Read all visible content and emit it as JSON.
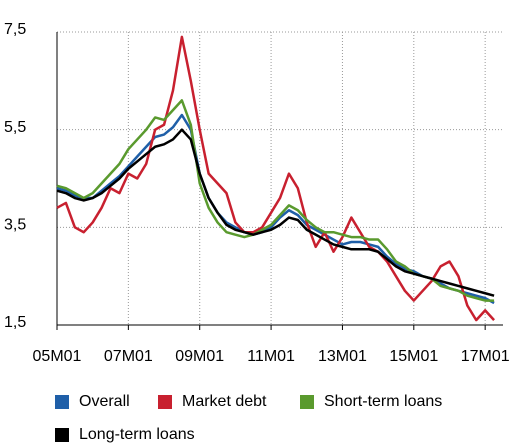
{
  "chart_data": {
    "type": "line",
    "categories": [
      "05M01",
      null,
      null,
      null,
      null,
      null,
      null,
      null,
      "07M01",
      null,
      null,
      null,
      null,
      null,
      null,
      null,
      "09M01",
      null,
      null,
      null,
      null,
      null,
      null,
      null,
      "11M01",
      null,
      null,
      null,
      null,
      null,
      null,
      null,
      "13M01",
      null,
      null,
      null,
      null,
      null,
      null,
      null,
      "15M01",
      null,
      null,
      null,
      null,
      null,
      null,
      null,
      "17M01",
      null
    ],
    "series": [
      {
        "name": "Overall",
        "color": "#1f5fa8",
        "values": [
          4.3,
          4.25,
          4.15,
          4.1,
          4.1,
          4.25,
          4.4,
          4.55,
          4.75,
          4.95,
          5.15,
          5.35,
          5.4,
          5.55,
          5.8,
          5.5,
          4.6,
          4.1,
          3.8,
          3.6,
          3.5,
          3.4,
          3.35,
          3.4,
          3.5,
          3.7,
          3.85,
          3.75,
          3.55,
          3.45,
          3.35,
          3.25,
          3.15,
          3.2,
          3.2,
          3.15,
          3.1,
          2.9,
          2.75,
          2.65,
          2.6,
          2.5,
          2.45,
          2.35,
          2.25,
          2.2,
          2.15,
          2.1,
          2.05,
          1.95
        ]
      },
      {
        "name": "Market debt",
        "color": "#c8202f",
        "values": [
          3.9,
          4.0,
          3.5,
          3.4,
          3.6,
          3.9,
          4.3,
          4.2,
          4.6,
          4.5,
          4.8,
          5.5,
          5.6,
          6.3,
          7.4,
          6.5,
          5.5,
          4.6,
          4.4,
          4.2,
          3.6,
          3.4,
          3.4,
          3.5,
          3.8,
          4.1,
          4.6,
          4.3,
          3.6,
          3.1,
          3.4,
          3.0,
          3.3,
          3.7,
          3.4,
          3.1,
          3.0,
          2.8,
          2.5,
          2.2,
          2.0,
          2.2,
          2.4,
          2.7,
          2.8,
          2.5,
          1.9,
          1.6,
          1.8,
          1.6
        ]
      },
      {
        "name": "Short-term loans",
        "color": "#5a9a2e",
        "values": [
          4.35,
          4.3,
          4.2,
          4.1,
          4.2,
          4.4,
          4.6,
          4.8,
          5.1,
          5.3,
          5.5,
          5.75,
          5.7,
          5.9,
          6.1,
          5.6,
          4.4,
          3.9,
          3.6,
          3.4,
          3.35,
          3.3,
          3.35,
          3.45,
          3.55,
          3.75,
          3.95,
          3.85,
          3.65,
          3.5,
          3.4,
          3.4,
          3.35,
          3.3,
          3.3,
          3.25,
          3.25,
          3.05,
          2.8,
          2.7,
          2.55,
          2.5,
          2.45,
          2.3,
          2.25,
          2.2,
          2.1,
          2.05,
          2.0,
          2.0
        ]
      },
      {
        "name": "Long-term loans",
        "color": "#000000",
        "values": [
          4.25,
          4.2,
          4.1,
          4.05,
          4.1,
          4.2,
          4.35,
          4.5,
          4.7,
          4.85,
          5.0,
          5.15,
          5.2,
          5.3,
          5.5,
          5.3,
          4.6,
          4.1,
          3.8,
          3.55,
          3.45,
          3.4,
          3.35,
          3.4,
          3.45,
          3.55,
          3.7,
          3.65,
          3.45,
          3.35,
          3.25,
          3.15,
          3.1,
          3.05,
          3.05,
          3.05,
          3.0,
          2.85,
          2.7,
          2.6,
          2.55,
          2.5,
          2.45,
          2.4,
          2.35,
          2.3,
          2.25,
          2.2,
          2.15,
          2.1
        ]
      }
    ],
    "ylim": [
      1.5,
      7.5
    ],
    "yticks": [
      {
        "value": 1.5,
        "label": "1,5"
      },
      {
        "value": 3.5,
        "label": "3,5"
      },
      {
        "value": 5.5,
        "label": "5,5"
      },
      {
        "value": 7.5,
        "label": "7,5"
      }
    ],
    "grid": true
  }
}
